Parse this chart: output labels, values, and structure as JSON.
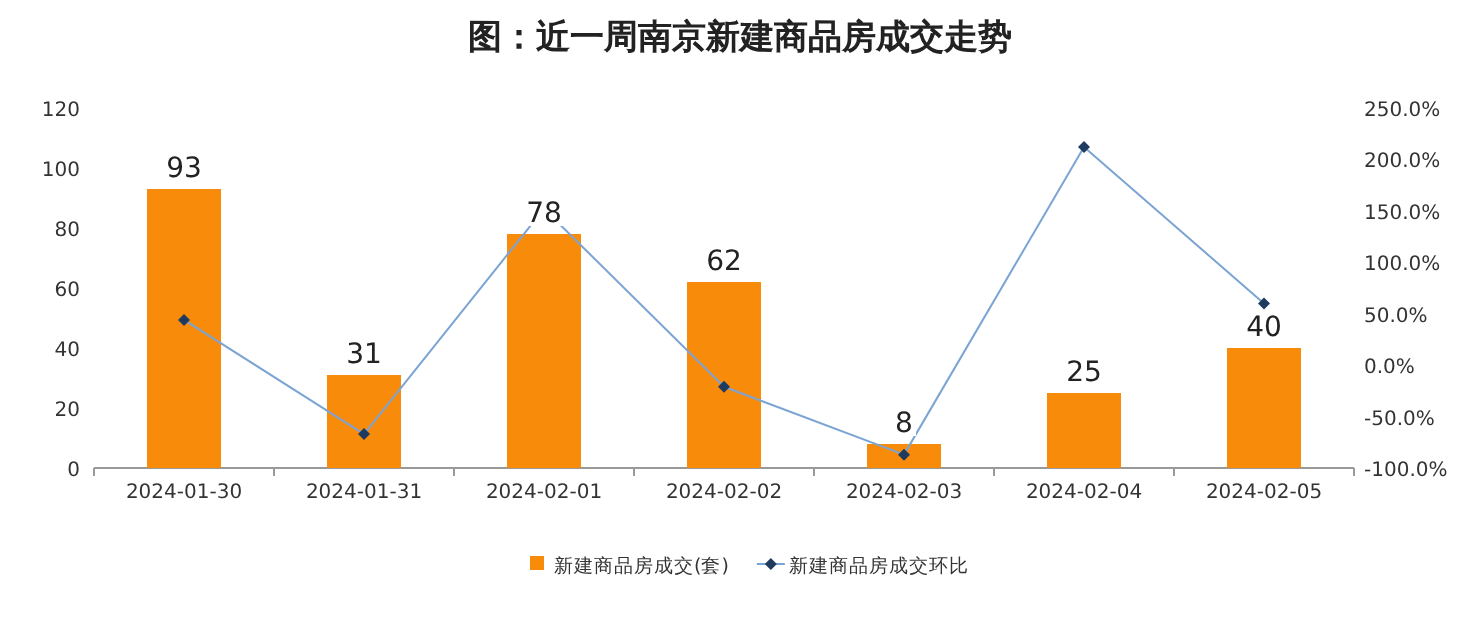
{
  "chart_data": {
    "type": "bar",
    "title": "图：近一周南京新建商品房成交走势",
    "categories": [
      "2024-01-30",
      "2024-01-31",
      "2024-02-01",
      "2024-02-02",
      "2024-02-03",
      "2024-02-04",
      "2024-02-05"
    ],
    "series": [
      {
        "name": "新建商品房成交(套)",
        "color": "#f98b0b",
        "values": [
          93,
          31,
          78,
          62,
          8,
          25,
          40
        ],
        "value_labels": [
          "93",
          "31",
          "78",
          "62",
          "8",
          "25",
          "40"
        ]
      },
      {
        "name": "新建商品房成交环比",
        "type": "line",
        "axis": "y2",
        "color": "#7ba4d4",
        "values": [
          44,
          -67,
          152,
          -21,
          -87,
          212,
          60
        ]
      }
    ],
    "ylim": [
      0,
      120
    ],
    "yticks": [
      0,
      20,
      40,
      60,
      80,
      100,
      120
    ],
    "y2lim": [
      -100,
      250
    ],
    "y2ticks": [
      {
        "value": -100,
        "label": "-100.0%"
      },
      {
        "value": -50,
        "label": "-50.0%"
      },
      {
        "value": 0,
        "label": "0.0%"
      },
      {
        "value": 50,
        "label": "50.0%"
      },
      {
        "value": 100,
        "label": "100.0%"
      },
      {
        "value": 150,
        "label": "150.0%"
      },
      {
        "value": 200,
        "label": "200.0%"
      },
      {
        "value": 250,
        "label": "250.0%"
      }
    ],
    "marker": "diamond",
    "legend": "bottom",
    "grid": false
  }
}
